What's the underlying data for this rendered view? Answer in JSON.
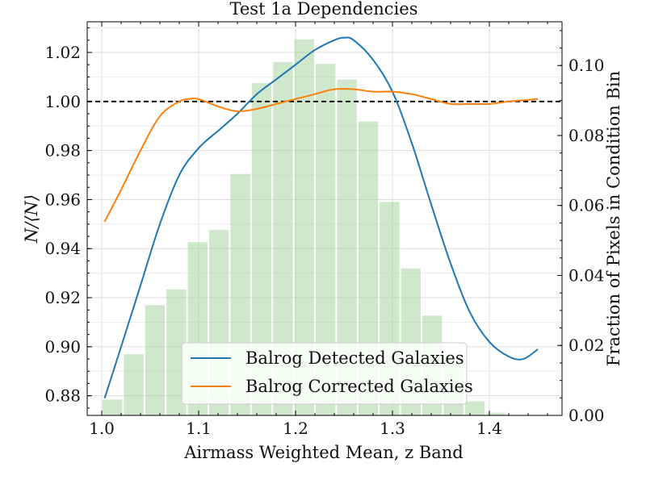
{
  "chart_data": {
    "type": "line",
    "title": "Test 1a Dependencies",
    "xlabel": "Airmass Weighted Mean, z Band",
    "ylabel": "N/⟨N⟩",
    "ylabel_right": "Fraction of Pixels in Condition Bin",
    "xlim": [
      0.985,
      1.475
    ],
    "ylim": [
      0.872,
      1.0325
    ],
    "ylim_right": [
      0.0,
      0.1125
    ],
    "x_ticks": [
      {
        "value": 1.0,
        "label": "1.0"
      },
      {
        "value": 1.1,
        "label": "1.1"
      },
      {
        "value": 1.2,
        "label": "1.2"
      },
      {
        "value": 1.3,
        "label": "1.3"
      },
      {
        "value": 1.4,
        "label": "1.4"
      }
    ],
    "y_ticks": [
      {
        "value": 0.88,
        "label": "0.88"
      },
      {
        "value": 0.9,
        "label": "0.90"
      },
      {
        "value": 0.92,
        "label": "0.92"
      },
      {
        "value": 0.94,
        "label": "0.94"
      },
      {
        "value": 0.96,
        "label": "0.96"
      },
      {
        "value": 0.98,
        "label": "0.98"
      },
      {
        "value": 1.0,
        "label": "1.00"
      },
      {
        "value": 1.02,
        "label": "1.02"
      }
    ],
    "y_ticks_right": [
      {
        "value": 0.0,
        "label": "0.00"
      },
      {
        "value": 0.02,
        "label": "0.02"
      },
      {
        "value": 0.04,
        "label": "0.04"
      },
      {
        "value": 0.06,
        "label": "0.06"
      },
      {
        "value": 0.08,
        "label": "0.08"
      },
      {
        "value": 0.1,
        "label": "0.10"
      }
    ],
    "reference_line": {
      "y": 1.0,
      "style": "dashed",
      "color": "#000000"
    },
    "grid": true,
    "legend": {
      "placement": "lower-center"
    },
    "series": [
      {
        "name": "Balrog Detected Galaxies",
        "color": "#1f77b4",
        "x": [
          1.003,
          1.02,
          1.04,
          1.06,
          1.08,
          1.1,
          1.12,
          1.14,
          1.16,
          1.18,
          1.2,
          1.22,
          1.24,
          1.25,
          1.26,
          1.28,
          1.3,
          1.32,
          1.34,
          1.36,
          1.38,
          1.4,
          1.42,
          1.435,
          1.45
        ],
        "y": [
          0.879,
          0.9,
          0.925,
          0.95,
          0.97,
          0.981,
          0.988,
          0.995,
          1.003,
          1.009,
          1.015,
          1.021,
          1.025,
          1.026,
          1.025,
          1.017,
          1.004,
          0.983,
          0.958,
          0.934,
          0.914,
          0.902,
          0.896,
          0.895,
          0.899
        ]
      },
      {
        "name": "Balrog Corrected Galaxies",
        "color": "#ff7f0e",
        "x": [
          1.003,
          1.02,
          1.04,
          1.06,
          1.08,
          1.09,
          1.1,
          1.12,
          1.14,
          1.16,
          1.18,
          1.2,
          1.22,
          1.24,
          1.26,
          1.28,
          1.3,
          1.32,
          1.34,
          1.36,
          1.38,
          1.4,
          1.42,
          1.45
        ],
        "y": [
          0.951,
          0.964,
          0.98,
          0.994,
          1.0,
          1.001,
          1.001,
          0.998,
          0.996,
          0.997,
          0.999,
          1.001,
          1.003,
          1.005,
          1.005,
          1.004,
          1.004,
          1.003,
          1.001,
          0.999,
          0.999,
          0.999,
          1.0,
          1.001
        ]
      }
    ],
    "histogram": {
      "color": "#a8d5a2",
      "bin_edges": [
        1.0,
        1.022,
        1.044,
        1.066,
        1.088,
        1.11,
        1.132,
        1.154,
        1.176,
        1.198,
        1.22,
        1.242,
        1.264,
        1.286,
        1.308,
        1.33,
        1.352,
        1.374,
        1.396,
        1.418,
        1.44,
        1.462
      ],
      "values": [
        0.0045,
        0.0175,
        0.0315,
        0.036,
        0.0495,
        0.053,
        0.069,
        0.095,
        0.101,
        0.1075,
        0.1005,
        0.096,
        0.084,
        0.061,
        0.042,
        0.0285,
        0.0175,
        0.004,
        0.0008,
        0.0,
        0.0
      ]
    }
  }
}
